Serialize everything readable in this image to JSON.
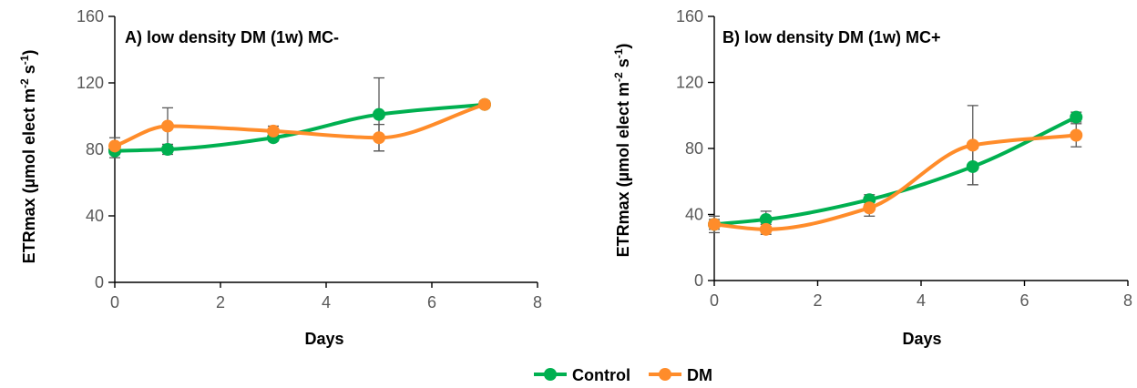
{
  "chart_data": [
    {
      "type": "line",
      "title": "A) low density DM (1w) MC-",
      "xlabel": "Days",
      "ylabel": "ETRmax (µmol elect m-2 s-1)",
      "ylabel_parts": {
        "main": "ETRmax (µmol elect m",
        "exp1": "-2",
        "mid": " s",
        "exp2": "-1",
        "close": ")"
      },
      "xlim": [
        0,
        8
      ],
      "ylim": [
        0,
        160
      ],
      "x_ticks": [
        0,
        2,
        4,
        6,
        8
      ],
      "y_ticks": [
        0,
        40,
        80,
        120,
        160
      ],
      "grid": false,
      "series": [
        {
          "name": "Control",
          "color": "#00b050",
          "x": [
            0,
            1,
            3,
            5,
            7
          ],
          "y": [
            79,
            80,
            87,
            101,
            107
          ],
          "err": [
            4,
            3,
            2,
            22,
            2
          ]
        },
        {
          "name": "DM",
          "color": "#ff8c2a",
          "x": [
            0,
            1,
            3,
            5,
            7
          ],
          "y": [
            82,
            94,
            91,
            87,
            107
          ],
          "err": [
            5,
            11,
            3,
            8,
            2
          ]
        }
      ]
    },
    {
      "type": "line",
      "title": "B) low density DM (1w) MC+",
      "xlabel": "Days",
      "ylabel": "ETRmax (µmol elect m-2 s-1)",
      "ylabel_parts": {
        "main": "ETRmax (µmol elect m",
        "exp1": "-2",
        "mid": " s",
        "exp2": "-1",
        "close": ")"
      },
      "xlim": [
        0,
        8
      ],
      "ylim": [
        0,
        160
      ],
      "x_ticks": [
        0,
        2,
        4,
        6,
        8
      ],
      "y_ticks": [
        0,
        40,
        80,
        120,
        160
      ],
      "grid": false,
      "series": [
        {
          "name": "Control",
          "color": "#00b050",
          "x": [
            0,
            1,
            3,
            5,
            7
          ],
          "y": [
            34,
            37,
            49,
            69,
            99
          ],
          "err": [
            3,
            5,
            3,
            11,
            3
          ]
        },
        {
          "name": "DM",
          "color": "#ff8c2a",
          "x": [
            0,
            1,
            3,
            5,
            7
          ],
          "y": [
            34,
            31,
            44,
            82,
            88
          ],
          "err": [
            5,
            3,
            5,
            24,
            7
          ]
        }
      ]
    }
  ],
  "legend": {
    "placement": "bottom-center",
    "items": [
      {
        "label": "Control",
        "color": "#00b050"
      },
      {
        "label": "DM",
        "color": "#ff8c2a"
      }
    ]
  }
}
